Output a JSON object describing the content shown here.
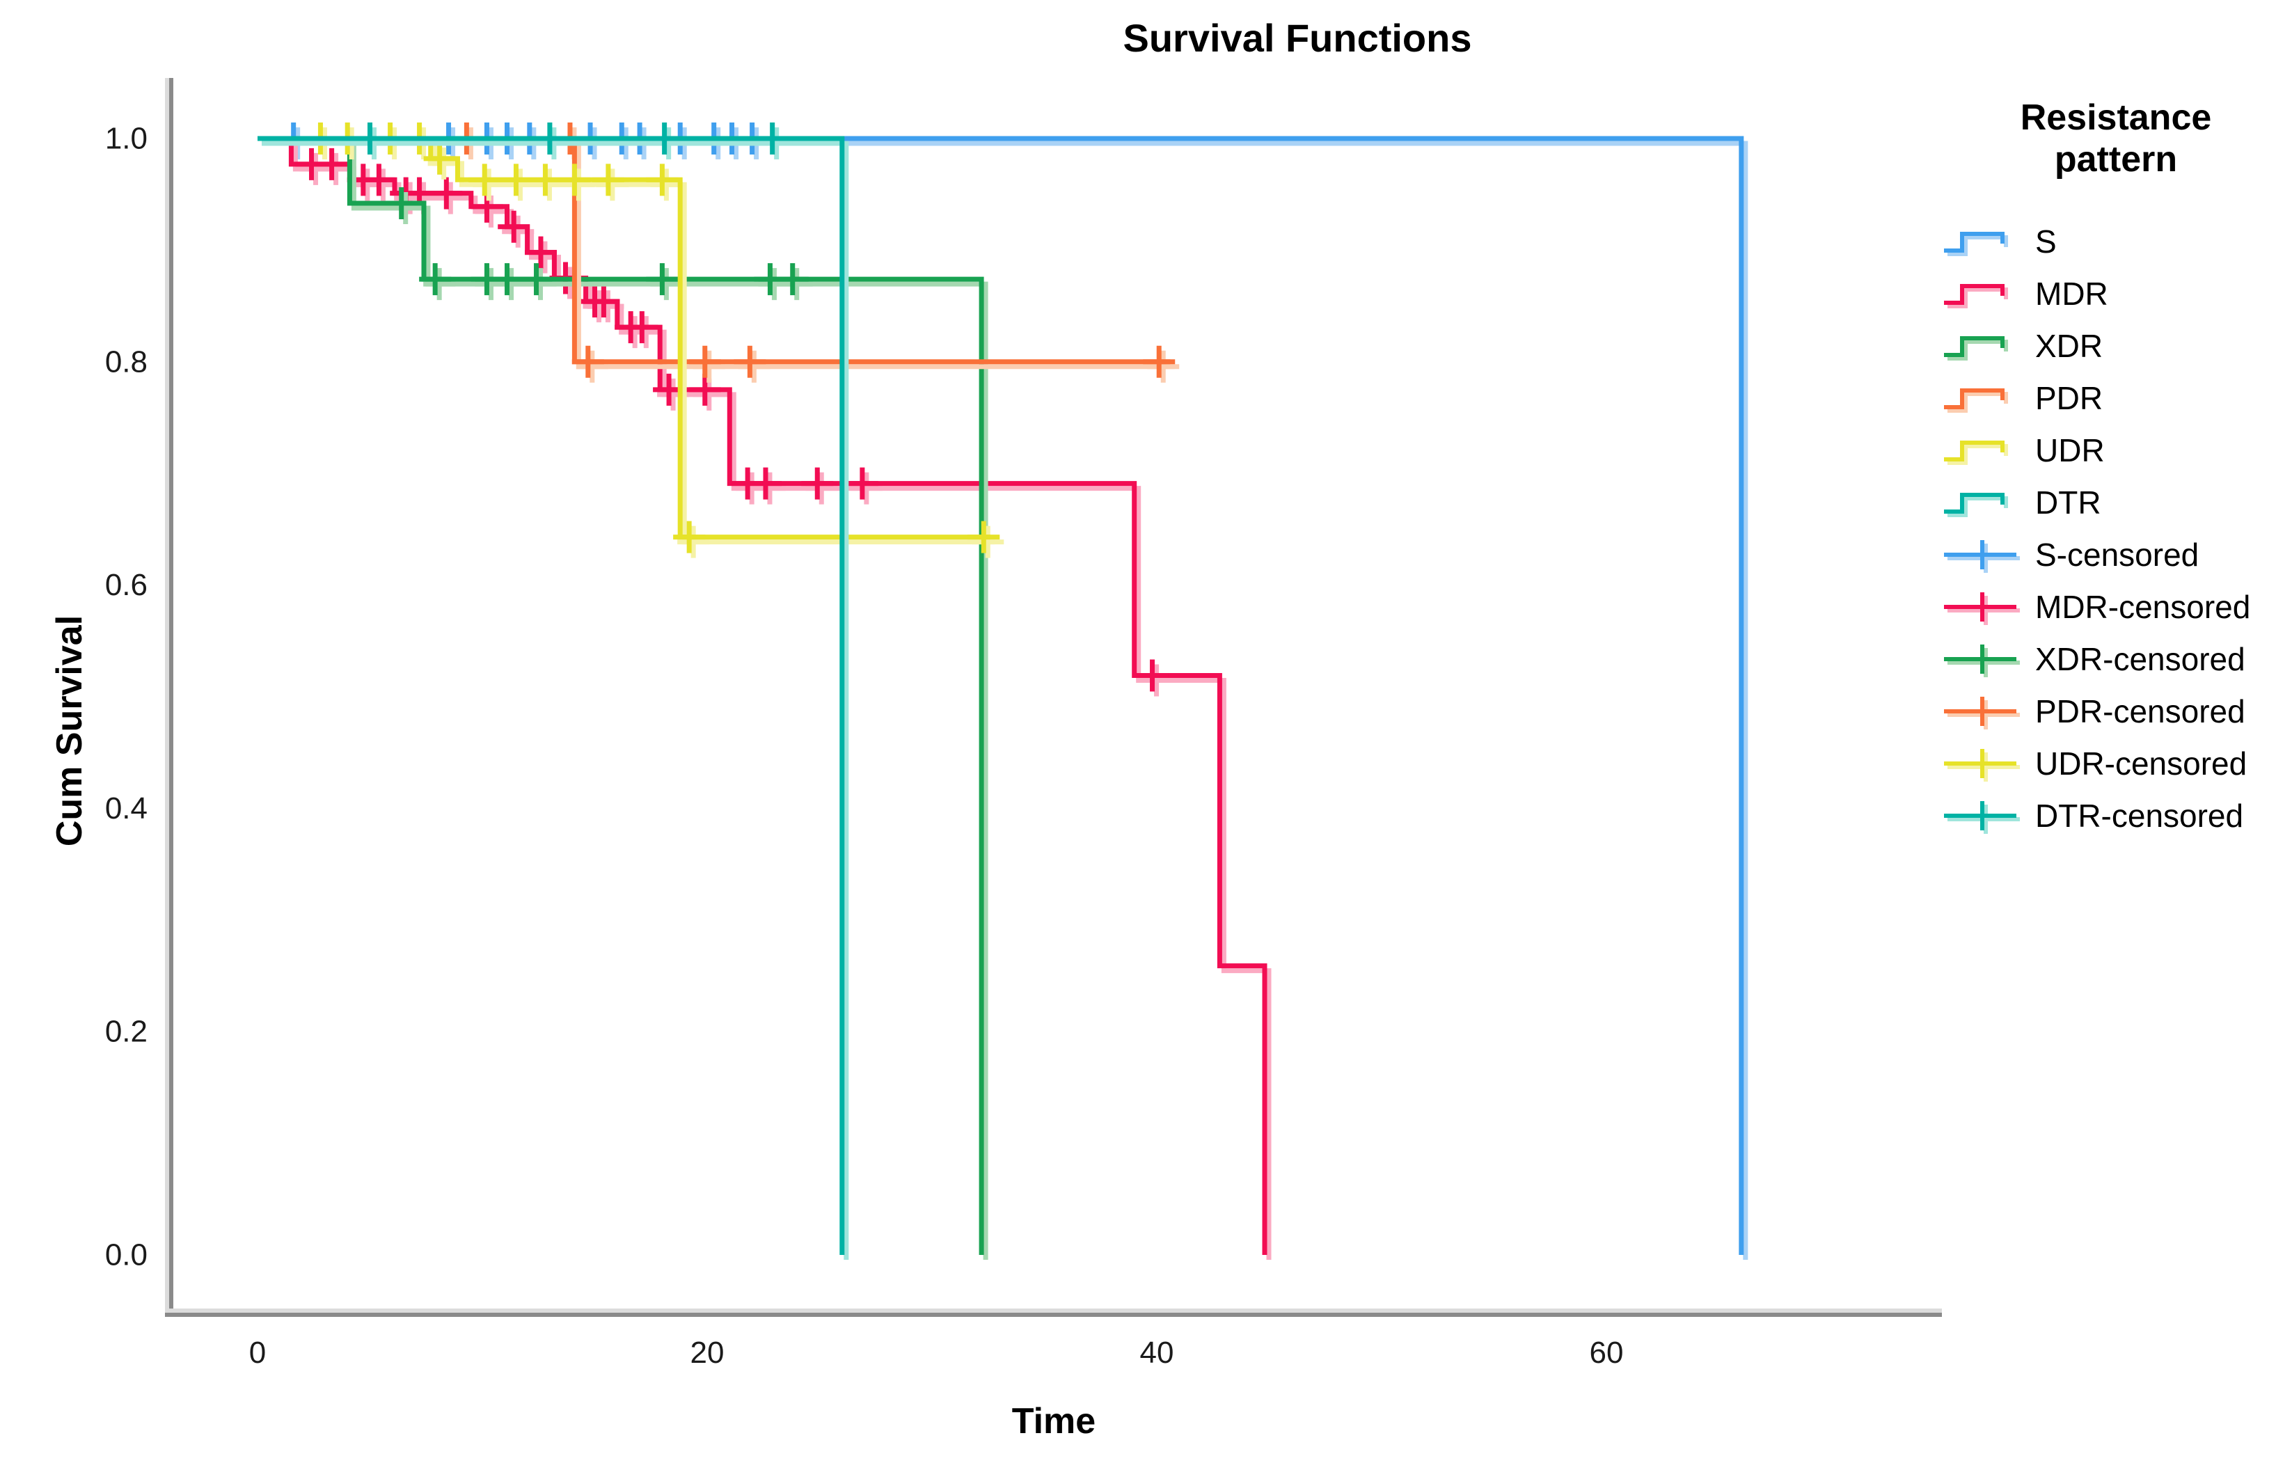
{
  "title": "Survival Functions",
  "x_axis": {
    "label": "Time",
    "ticks": [
      "0",
      "20",
      "40",
      "60"
    ],
    "tick_values": [
      0,
      20,
      40,
      60
    ],
    "range": [
      -3.9,
      74.8
    ]
  },
  "y_axis": {
    "label": "Cum Survival",
    "ticks": [
      "1.0",
      "0.8",
      "0.6",
      "0.4",
      "0.2",
      "0.0"
    ],
    "tick_values": [
      1.0,
      0.8,
      0.6,
      0.4,
      0.2,
      0.0
    ],
    "range": [
      0,
      1.05
    ]
  },
  "legend": {
    "title": "Resistance pattern",
    "entries": [
      {
        "label": "S",
        "type": "line",
        "color": "#3F9FEE",
        "halo": "#A9D2F6"
      },
      {
        "label": "MDR",
        "type": "line",
        "color": "#F20D53",
        "halo": "#FBAAC2"
      },
      {
        "label": "XDR",
        "type": "line",
        "color": "#18A251",
        "halo": "#A5D8B0"
      },
      {
        "label": "PDR",
        "type": "line",
        "color": "#F97038",
        "halo": "#FBCDB0"
      },
      {
        "label": "UDR",
        "type": "line",
        "color": "#E6E229",
        "halo": "#F5F2A6"
      },
      {
        "label": "DTR",
        "type": "line",
        "color": "#00B2A4",
        "halo": "#9FE5DC"
      },
      {
        "label": "S-censored",
        "type": "censor",
        "color": "#3F9FEE",
        "halo": "#A9D2F6"
      },
      {
        "label": "MDR-censored",
        "type": "censor",
        "color": "#F20D53",
        "halo": "#FBAAC2"
      },
      {
        "label": "XDR-censored",
        "type": "censor",
        "color": "#18A251",
        "halo": "#A5D8B0"
      },
      {
        "label": "PDR-censored",
        "type": "censor",
        "color": "#F97038",
        "halo": "#FBCDB0"
      },
      {
        "label": "UDR-censored",
        "type": "censor",
        "color": "#E6E229",
        "halo": "#F5F2A6"
      },
      {
        "label": "DTR-censored",
        "type": "censor",
        "color": "#00B2A4",
        "halo": "#9FE5DC"
      }
    ]
  },
  "frame_colors": {
    "dark": "#8A8A8A",
    "light": "#DCDCDC",
    "tick_text": "#1A1A1A"
  },
  "chart_data": {
    "type": "line",
    "subtype": "kaplan-meier-step",
    "title": "Survival Functions",
    "xlabel": "Time",
    "ylabel": "Cum Survival",
    "xlim": [
      -3.9,
      74.8
    ],
    "ylim": [
      0,
      1.05
    ],
    "grid": false,
    "legend_position": "right",
    "series": [
      {
        "name": "S",
        "color": "#3F9FEE",
        "halo": "#A9D2F6",
        "steps": [
          [
            0,
            1.0
          ],
          [
            66,
            1.0
          ],
          [
            66,
            0.0
          ]
        ],
        "censored": [
          [
            1.6,
            1.0
          ],
          [
            8.5,
            1.0
          ],
          [
            10.2,
            1.0
          ],
          [
            11.1,
            1.0
          ],
          [
            12.1,
            1.0
          ],
          [
            14.8,
            1.0
          ],
          [
            16.2,
            1.0
          ],
          [
            17.0,
            1.0
          ],
          [
            18.8,
            1.0
          ],
          [
            20.3,
            1.0
          ],
          [
            21.1,
            1.0
          ],
          [
            22.0,
            1.0
          ]
        ]
      },
      {
        "name": "MDR",
        "color": "#F20D53",
        "halo": "#FBAAC2",
        "steps": [
          [
            0,
            1.0
          ],
          [
            1.5,
            0.977
          ],
          [
            4.1,
            0.963
          ],
          [
            6.1,
            0.951
          ],
          [
            9.5,
            0.939
          ],
          [
            11.1,
            0.921
          ],
          [
            12.0,
            0.898
          ],
          [
            13.2,
            0.875
          ],
          [
            14.6,
            0.854
          ],
          [
            16.0,
            0.831
          ],
          [
            17.9,
            0.775
          ],
          [
            21.0,
            0.691
          ],
          [
            39.0,
            0.519
          ],
          [
            42.8,
            0.259
          ],
          [
            44.8,
            0.0
          ]
        ],
        "censored": [
          [
            2.4,
            0.977
          ],
          [
            3.3,
            0.977
          ],
          [
            4.7,
            0.963
          ],
          [
            5.4,
            0.963
          ],
          [
            6.6,
            0.951
          ],
          [
            7.2,
            0.951
          ],
          [
            8.4,
            0.951
          ],
          [
            10.2,
            0.939
          ],
          [
            11.4,
            0.921
          ],
          [
            12.6,
            0.898
          ],
          [
            13.7,
            0.875
          ],
          [
            15.0,
            0.854
          ],
          [
            15.4,
            0.854
          ],
          [
            16.6,
            0.831
          ],
          [
            17.1,
            0.831
          ],
          [
            18.3,
            0.775
          ],
          [
            19.9,
            0.775
          ],
          [
            21.8,
            0.691
          ],
          [
            22.6,
            0.691
          ],
          [
            24.9,
            0.691
          ],
          [
            26.9,
            0.691
          ],
          [
            39.8,
            0.519
          ]
        ]
      },
      {
        "name": "XDR",
        "color": "#18A251",
        "halo": "#A5D8B0",
        "steps": [
          [
            0,
            1.0
          ],
          [
            4.1,
            0.942
          ],
          [
            7.4,
            0.874
          ],
          [
            32.2,
            0.0
          ]
        ],
        "censored": [
          [
            6.4,
            0.942
          ],
          [
            7.9,
            0.874
          ],
          [
            10.2,
            0.874
          ],
          [
            11.1,
            0.874
          ],
          [
            12.4,
            0.874
          ],
          [
            18.0,
            0.874
          ],
          [
            22.8,
            0.874
          ],
          [
            23.8,
            0.874
          ]
        ]
      },
      {
        "name": "PDR",
        "color": "#F97038",
        "halo": "#FBCDB0",
        "steps": [
          [
            0,
            1.0
          ],
          [
            14.1,
            0.8
          ],
          [
            40.6,
            0.8
          ]
        ],
        "censored": [
          [
            9.3,
            1.0
          ],
          [
            13.9,
            1.0
          ],
          [
            14.7,
            0.8
          ],
          [
            19.9,
            0.8
          ],
          [
            21.9,
            0.8
          ],
          [
            40.1,
            0.8
          ]
        ]
      },
      {
        "name": "UDR",
        "color": "#E6E229",
        "halo": "#F5F2A6",
        "steps": [
          [
            0,
            1.0
          ],
          [
            7.7,
            0.982
          ],
          [
            8.9,
            0.963
          ],
          [
            18.8,
            0.643
          ],
          [
            32.6,
            0.643
          ]
        ],
        "censored": [
          [
            2.8,
            1.0
          ],
          [
            4.0,
            1.0
          ],
          [
            5.9,
            1.0
          ],
          [
            7.2,
            1.0
          ],
          [
            8.1,
            0.982
          ],
          [
            10.1,
            0.963
          ],
          [
            11.5,
            0.963
          ],
          [
            12.8,
            0.963
          ],
          [
            14.1,
            0.963
          ],
          [
            15.6,
            0.963
          ],
          [
            18.0,
            0.963
          ],
          [
            19.2,
            0.643
          ],
          [
            32.3,
            0.643
          ]
        ]
      },
      {
        "name": "DTR",
        "color": "#00B2A4",
        "halo": "#9FE5DC",
        "steps": [
          [
            0,
            1.0
          ],
          [
            26,
            1.0
          ],
          [
            26,
            0.0
          ]
        ],
        "censored": [
          [
            5.0,
            1.0
          ],
          [
            13.0,
            1.0
          ],
          [
            18.1,
            1.0
          ],
          [
            22.9,
            1.0
          ]
        ]
      }
    ]
  }
}
